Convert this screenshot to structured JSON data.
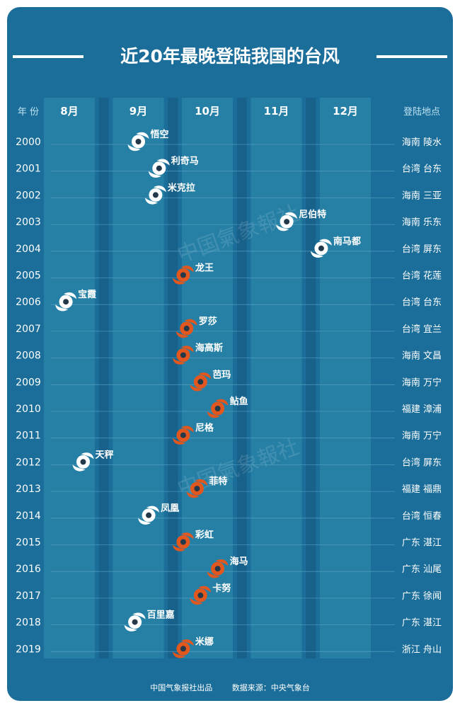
{
  "title": "近20年最晚登陆我国的台风",
  "footer": {
    "publisher": "中国气象报社出品",
    "source": "数据来源：中央气象台"
  },
  "watermark": "中国氣象報社",
  "colors": {
    "background": "#1b6e9a",
    "panel": "#2f8fae",
    "highlight": "#e2571e",
    "marker_white": "#ffffff",
    "marker_dark": "#23394a"
  },
  "chart_data": {
    "type": "scatter",
    "title": "近20年最晚登陆我国的台风",
    "row_header": "年 份",
    "location_header": "登陆地点",
    "months": [
      "8月",
      "9月",
      "10月",
      "11月",
      "12月"
    ],
    "xlim": [
      8,
      13
    ],
    "points": [
      {
        "year": "2000",
        "name": "悟空",
        "month": 9.0,
        "location": "海南 陵水",
        "highlight": false
      },
      {
        "year": "2001",
        "name": "利奇马",
        "month": 9.3,
        "location": "台湾 台东",
        "highlight": false
      },
      {
        "year": "2002",
        "name": "米克拉",
        "month": 9.25,
        "location": "海南 三亚",
        "highlight": false
      },
      {
        "year": "2003",
        "name": "尼伯特",
        "month": 11.15,
        "location": "海南 乐东",
        "highlight": false
      },
      {
        "year": "2004",
        "name": "南马都",
        "month": 11.65,
        "location": "台湾 屏东",
        "highlight": false
      },
      {
        "year": "2005",
        "name": "龙王",
        "month": 9.65,
        "location": "台湾 花莲",
        "highlight": true
      },
      {
        "year": "2006",
        "name": "宝霞",
        "month": 7.95,
        "location": "台湾 台东",
        "highlight": false
      },
      {
        "year": "2007",
        "name": "罗莎",
        "month": 9.7,
        "location": "台湾 宜兰",
        "highlight": true
      },
      {
        "year": "2008",
        "name": "海高斯",
        "month": 9.65,
        "location": "海南 文昌",
        "highlight": true
      },
      {
        "year": "2009",
        "name": "芭玛",
        "month": 9.9,
        "location": "海南 万宁",
        "highlight": true
      },
      {
        "year": "2010",
        "name": "鲇鱼",
        "month": 10.15,
        "location": "福建 漳浦",
        "highlight": true
      },
      {
        "year": "2011",
        "name": "尼格",
        "month": 9.65,
        "location": "海南 万宁",
        "highlight": true
      },
      {
        "year": "2012",
        "name": "天秤",
        "month": 8.2,
        "location": "台湾 屏东",
        "highlight": false
      },
      {
        "year": "2013",
        "name": "菲特",
        "month": 9.85,
        "location": "福建 福鼎",
        "highlight": true
      },
      {
        "year": "2014",
        "name": "凤凰",
        "month": 9.15,
        "location": "台湾 恒春",
        "highlight": false
      },
      {
        "year": "2015",
        "name": "彩虹",
        "month": 9.65,
        "location": "广东 湛江",
        "highlight": true
      },
      {
        "year": "2016",
        "name": "海马",
        "month": 10.15,
        "location": "广东 汕尾",
        "highlight": true
      },
      {
        "year": "2017",
        "name": "卡努",
        "month": 9.9,
        "location": "广东 徐闻",
        "highlight": true
      },
      {
        "year": "2018",
        "name": "百里嘉",
        "month": 8.95,
        "location": "广东 湛江",
        "highlight": false
      },
      {
        "year": "2019",
        "name": "米娜",
        "month": 9.65,
        "location": "浙江 舟山",
        "highlight": true
      }
    ]
  }
}
